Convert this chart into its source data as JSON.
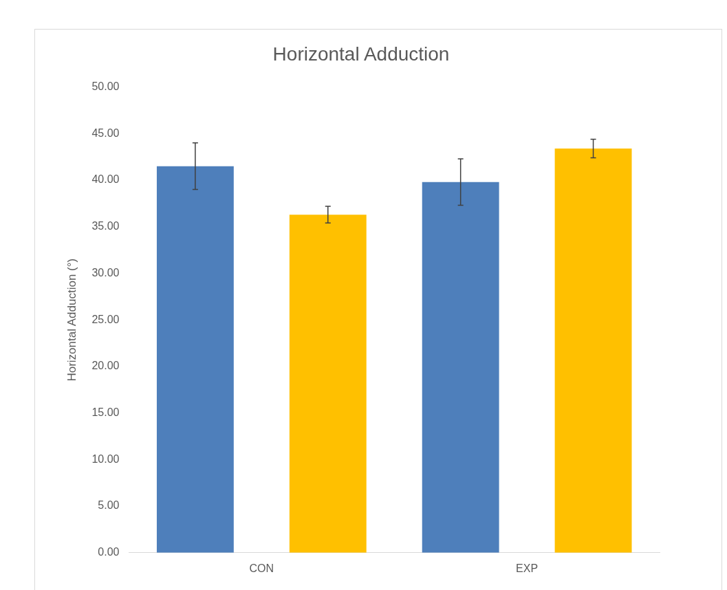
{
  "chart_data": {
    "type": "bar",
    "title": "Horizontal Adduction",
    "ylabel": "Horizontal Adduction (°)",
    "categories": [
      "CON",
      "EXP"
    ],
    "series": [
      {
        "color": "#4e7fbb",
        "values": [
          41.5,
          39.8
        ],
        "errors": [
          2.5,
          2.5
        ]
      },
      {
        "color": "#ffc000",
        "values": [
          36.3,
          43.4
        ],
        "errors": [
          0.9,
          1.0
        ]
      }
    ],
    "ylim": [
      0,
      50
    ],
    "yticks": [
      {
        "value": 0,
        "label": "0.00"
      },
      {
        "value": 5,
        "label": "5.00"
      },
      {
        "value": 10,
        "label": "10.00"
      },
      {
        "value": 15,
        "label": "15.00"
      },
      {
        "value": 20,
        "label": "20.00"
      },
      {
        "value": 25,
        "label": "25.00"
      },
      {
        "value": 30,
        "label": "30.00"
      },
      {
        "value": 35,
        "label": "35.00"
      },
      {
        "value": 40,
        "label": "40.00"
      },
      {
        "value": 45,
        "label": "45.00"
      },
      {
        "value": 50,
        "label": "50.00"
      }
    ],
    "grid": false,
    "legend": false
  }
}
